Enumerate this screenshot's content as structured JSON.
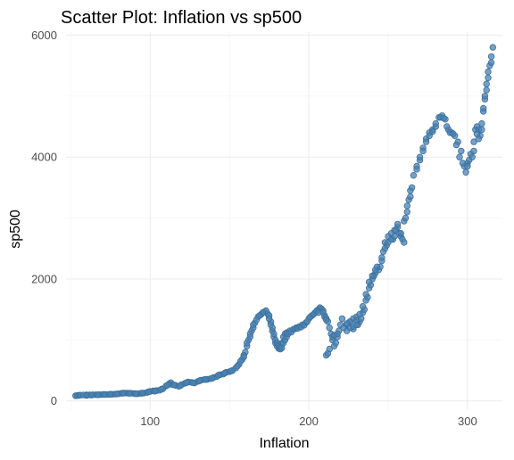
{
  "chart_data": {
    "type": "scatter",
    "title": "Scatter Plot: Inflation vs sp500",
    "xlabel": "Inflation",
    "ylabel": "sp500",
    "xlim": [
      47,
      322
    ],
    "ylim": [
      -150,
      6050
    ],
    "x_ticks": [
      100,
      200,
      300
    ],
    "x_tick_labels": [
      "100",
      "200",
      "300"
    ],
    "x_minor": [
      50,
      150,
      250
    ],
    "y_ticks": [
      0,
      2000,
      4000,
      6000
    ],
    "y_tick_labels": [
      "0",
      "2000",
      "4000",
      "6000"
    ],
    "y_minor": [
      1000,
      3000,
      5000
    ],
    "grid": true,
    "point_color": "#4682b4",
    "points": [
      [
        53,
        85
      ],
      [
        54,
        88
      ],
      [
        55,
        92
      ],
      [
        56,
        95
      ],
      [
        58,
        97
      ],
      [
        60,
        99
      ],
      [
        62,
        100
      ],
      [
        64,
        101
      ],
      [
        66,
        102
      ],
      [
        68,
        103
      ],
      [
        70,
        104
      ],
      [
        72,
        105
      ],
      [
        74,
        107
      ],
      [
        76,
        109
      ],
      [
        78,
        112
      ],
      [
        80,
        118
      ],
      [
        82,
        125
      ],
      [
        84,
        130
      ],
      [
        86,
        128
      ],
      [
        88,
        126
      ],
      [
        90,
        120
      ],
      [
        92,
        118
      ],
      [
        94,
        125
      ],
      [
        96,
        130
      ],
      [
        98,
        140
      ],
      [
        100,
        155
      ],
      [
        102,
        165
      ],
      [
        104,
        170
      ],
      [
        106,
        175
      ],
      [
        108,
        200
      ],
      [
        110,
        245
      ],
      [
        112,
        280
      ],
      [
        113,
        300
      ],
      [
        114,
        270
      ],
      [
        116,
        255
      ],
      [
        118,
        240
      ],
      [
        120,
        270
      ],
      [
        122,
        290
      ],
      [
        124,
        310
      ],
      [
        126,
        305
      ],
      [
        128,
        295
      ],
      [
        130,
        320
      ],
      [
        132,
        340
      ],
      [
        134,
        350
      ],
      [
        136,
        355
      ],
      [
        138,
        365
      ],
      [
        140,
        385
      ],
      [
        142,
        400
      ],
      [
        144,
        430
      ],
      [
        146,
        440
      ],
      [
        148,
        470
      ],
      [
        150,
        480
      ],
      [
        152,
        500
      ],
      [
        154,
        540
      ],
      [
        156,
        600
      ],
      [
        158,
        680
      ],
      [
        160,
        800
      ],
      [
        162,
        1000
      ],
      [
        164,
        1150
      ],
      [
        166,
        1280
      ],
      [
        168,
        1380
      ],
      [
        170,
        1420
      ],
      [
        172,
        1460
      ],
      [
        173,
        1480
      ],
      [
        174,
        1430
      ],
      [
        175,
        1400
      ],
      [
        176,
        1300
      ],
      [
        177,
        1150
      ],
      [
        178,
        1050
      ],
      [
        179,
        950
      ],
      [
        180,
        900
      ],
      [
        181,
        860
      ],
      [
        182,
        850
      ],
      [
        183,
        950
      ],
      [
        184,
        1050
      ],
      [
        185,
        1100
      ],
      [
        186,
        1120
      ],
      [
        188,
        1150
      ],
      [
        190,
        1170
      ],
      [
        192,
        1200
      ],
      [
        194,
        1220
      ],
      [
        196,
        1250
      ],
      [
        198,
        1280
      ],
      [
        200,
        1350
      ],
      [
        202,
        1400
      ],
      [
        204,
        1450
      ],
      [
        206,
        1500
      ],
      [
        207,
        1530
      ],
      [
        208,
        1510
      ],
      [
        209,
        1480
      ],
      [
        210,
        1400
      ],
      [
        211,
        1350
      ],
      [
        212,
        1300
      ],
      [
        213,
        1200
      ],
      [
        214,
        1100
      ],
      [
        215,
        1000
      ],
      [
        216,
        900
      ],
      [
        217,
        950
      ],
      [
        218,
        1050
      ],
      [
        219,
        1150
      ],
      [
        220,
        1250
      ],
      [
        222,
        1200
      ],
      [
        224,
        1250
      ],
      [
        226,
        1300
      ],
      [
        228,
        1350
      ],
      [
        230,
        1380
      ],
      [
        232,
        1300
      ],
      [
        234,
        1450
      ],
      [
        236,
        1650
      ],
      [
        238,
        1850
      ],
      [
        240,
        2000
      ],
      [
        242,
        2100
      ],
      [
        244,
        2150
      ],
      [
        245,
        2200
      ],
      [
        246,
        2300
      ],
      [
        247,
        2450
      ],
      [
        248,
        2600
      ],
      [
        250,
        2700
      ],
      [
        252,
        2750
      ],
      [
        254,
        2800
      ],
      [
        256,
        2850
      ],
      [
        258,
        2700
      ],
      [
        260,
        2950
      ],
      [
        262,
        3200
      ],
      [
        264,
        3450
      ],
      [
        266,
        3700
      ],
      [
        268,
        3850
      ],
      [
        270,
        3950
      ],
      [
        272,
        4150
      ],
      [
        274,
        4300
      ],
      [
        276,
        4400
      ],
      [
        278,
        4450
      ],
      [
        280,
        4500
      ],
      [
        282,
        4650
      ],
      [
        284,
        4680
      ],
      [
        286,
        4620
      ],
      [
        288,
        4450
      ],
      [
        290,
        4400
      ],
      [
        292,
        4350
      ],
      [
        294,
        4250
      ],
      [
        296,
        4100
      ],
      [
        298,
        3850
      ],
      [
        299,
        3750
      ],
      [
        300,
        3900
      ],
      [
        302,
        4050
      ],
      [
        304,
        4250
      ],
      [
        305,
        4450
      ],
      [
        306,
        4500
      ],
      [
        307,
        4450
      ],
      [
        308,
        4350
      ],
      [
        309,
        4550
      ],
      [
        310,
        4750
      ],
      [
        311,
        4950
      ],
      [
        312,
        5100
      ],
      [
        313,
        5300
      ],
      [
        314,
        5500
      ],
      [
        315,
        5650
      ],
      [
        316,
        5800
      ],
      [
        211,
        750
      ],
      [
        212,
        780
      ],
      [
        213,
        850
      ],
      [
        215,
        1050
      ],
      [
        216,
        1080
      ],
      [
        218,
        1100
      ],
      [
        221,
        1350
      ],
      [
        224,
        1150
      ],
      [
        226,
        1300
      ],
      [
        228,
        1180
      ],
      [
        230,
        1320
      ],
      [
        231,
        1250
      ],
      [
        233,
        1350
      ],
      [
        235,
        1500
      ],
      [
        237,
        1700
      ],
      [
        239,
        1900
      ],
      [
        241,
        2050
      ],
      [
        243,
        2200
      ],
      [
        249,
        2550
      ],
      [
        253,
        2650
      ],
      [
        255,
        2800
      ],
      [
        257,
        2750
      ],
      [
        259,
        2650
      ],
      [
        261,
        3000
      ],
      [
        263,
        3300
      ],
      [
        265,
        3500
      ],
      [
        171,
        1450
      ],
      [
        169,
        1400
      ],
      [
        167,
        1330
      ],
      [
        165,
        1200
      ],
      [
        163,
        1100
      ],
      [
        161,
        900
      ],
      [
        159,
        750
      ],
      [
        157,
        650
      ],
      [
        175,
        1350
      ],
      [
        176,
        1250
      ],
      [
        177,
        1200
      ],
      [
        178,
        1100
      ],
      [
        179,
        1000
      ],
      [
        180,
        950
      ],
      [
        181,
        900
      ],
      [
        182,
        880
      ],
      [
        183,
        870
      ],
      [
        184,
        950
      ],
      [
        185,
        1000
      ],
      [
        186,
        1050
      ],
      [
        187,
        1100
      ],
      [
        189,
        1130
      ],
      [
        191,
        1180
      ],
      [
        193,
        1190
      ],
      [
        195,
        1210
      ],
      [
        197,
        1240
      ],
      [
        199,
        1300
      ],
      [
        201,
        1380
      ],
      [
        203,
        1420
      ],
      [
        205,
        1480
      ],
      [
        206,
        1450
      ],
      [
        209,
        1450
      ],
      [
        210,
        1380
      ],
      [
        211,
        1330
      ],
      [
        224,
        1270
      ],
      [
        226,
        1200
      ],
      [
        228,
        1220
      ],
      [
        230,
        1250
      ],
      [
        232,
        1420
      ],
      [
        234,
        1550
      ],
      [
        236,
        1750
      ],
      [
        238,
        1950
      ],
      [
        240,
        2050
      ],
      [
        242,
        2150
      ],
      [
        246,
        2350
      ],
      [
        248,
        2500
      ],
      [
        250,
        2600
      ],
      [
        252,
        2650
      ],
      [
        254,
        2700
      ],
      [
        256,
        2900
      ],
      [
        258,
        2750
      ],
      [
        260,
        2600
      ],
      [
        262,
        3100
      ],
      [
        264,
        3350
      ],
      [
        268,
        3800
      ],
      [
        270,
        4000
      ],
      [
        272,
        4100
      ],
      [
        274,
        4250
      ],
      [
        276,
        4350
      ],
      [
        278,
        4420
      ],
      [
        280,
        4550
      ],
      [
        283,
        4650
      ],
      [
        285,
        4640
      ],
      [
        287,
        4500
      ],
      [
        289,
        4400
      ],
      [
        291,
        4380
      ],
      [
        293,
        4200
      ],
      [
        295,
        4000
      ],
      [
        297,
        3900
      ],
      [
        300,
        3850
      ],
      [
        301,
        3950
      ],
      [
        303,
        4000
      ],
      [
        304,
        4100
      ],
      [
        306,
        4380
      ],
      [
        307,
        4300
      ],
      [
        309,
        4450
      ],
      [
        310,
        4800
      ],
      [
        311,
        5000
      ],
      [
        312,
        5200
      ],
      [
        313,
        5400
      ],
      [
        315,
        5550
      ],
      [
        60,
        90
      ],
      [
        63,
        95
      ],
      [
        67,
        100
      ],
      [
        71,
        108
      ],
      [
        75,
        110
      ],
      [
        79,
        115
      ],
      [
        83,
        128
      ],
      [
        87,
        125
      ],
      [
        91,
        119
      ],
      [
        95,
        128
      ],
      [
        99,
        150
      ],
      [
        103,
        160
      ],
      [
        107,
        190
      ],
      [
        111,
        260
      ],
      [
        115,
        262
      ],
      [
        119,
        250
      ],
      [
        123,
        300
      ],
      [
        127,
        300
      ],
      [
        131,
        330
      ],
      [
        135,
        352
      ],
      [
        139,
        370
      ],
      [
        143,
        420
      ],
      [
        147,
        455
      ],
      [
        151,
        490
      ],
      [
        155,
        570
      ],
      [
        159,
        720
      ],
      [
        161,
        950
      ],
      [
        163,
        1050
      ],
      [
        165,
        1250
      ]
    ]
  }
}
